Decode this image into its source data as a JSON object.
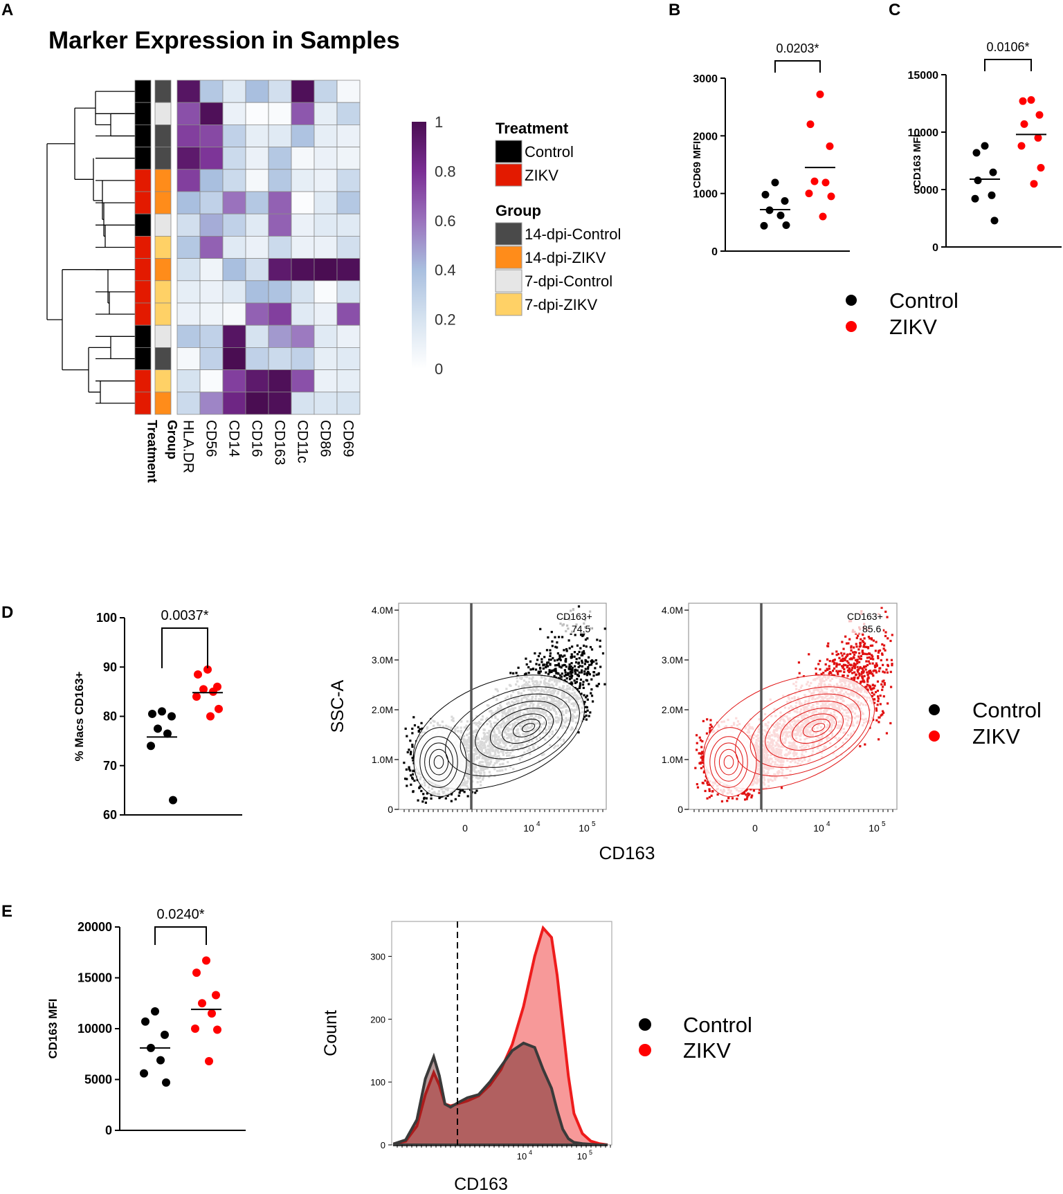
{
  "panels": {
    "A": {
      "letter": "A",
      "chart_data": {
        "type": "heatmap",
        "title": "Marker Expression in Samples",
        "markers": [
          "HLA.DR",
          "CD56",
          "CD14",
          "CD16",
          "CD163",
          "CD11c",
          "CD86",
          "CD69"
        ],
        "annotation_column_labels": [
          "Treatment",
          "Group"
        ],
        "rows": [
          {
            "treatment": "Control",
            "group": "14-dpi-Control",
            "values": [
              0.95,
              0.35,
              0.15,
              0.4,
              0.22,
              0.98,
              0.28,
              0.05
            ]
          },
          {
            "treatment": "Control",
            "group": "7-dpi-Control",
            "values": [
              0.7,
              0.98,
              0.1,
              0.02,
              0.03,
              0.68,
              0.12,
              0.28
            ]
          },
          {
            "treatment": "Control",
            "group": "14-dpi-Control",
            "values": [
              0.75,
              0.72,
              0.3,
              0.12,
              0.15,
              0.38,
              0.12,
              0.1
            ]
          },
          {
            "treatment": "Control",
            "group": "14-dpi-Control",
            "values": [
              0.92,
              0.78,
              0.25,
              0.1,
              0.35,
              0.05,
              0.1,
              0.08
            ]
          },
          {
            "treatment": "ZIKV",
            "group": "14-dpi-ZIKV",
            "values": [
              0.75,
              0.4,
              0.25,
              0.05,
              0.35,
              0.12,
              0.1,
              0.25
            ]
          },
          {
            "treatment": "ZIKV",
            "group": "14-dpi-ZIKV",
            "values": [
              0.4,
              0.3,
              0.6,
              0.35,
              0.65,
              0.02,
              0.15,
              0.35
            ]
          },
          {
            "treatment": "Control",
            "group": "7-dpi-Control",
            "values": [
              0.22,
              0.45,
              0.3,
              0.15,
              0.65,
              0.1,
              0.15,
              0.15
            ]
          },
          {
            "treatment": "ZIKV",
            "group": "7-dpi-ZIKV",
            "values": [
              0.35,
              0.65,
              0.15,
              0.1,
              0.25,
              0.1,
              0.1,
              0.22
            ]
          },
          {
            "treatment": "ZIKV",
            "group": "14-dpi-ZIKV",
            "values": [
              0.2,
              0.08,
              0.4,
              0.22,
              0.92,
              0.98,
              1.0,
              0.98
            ]
          },
          {
            "treatment": "ZIKV",
            "group": "7-dpi-ZIKV",
            "values": [
              0.12,
              0.1,
              0.15,
              0.4,
              0.38,
              0.2,
              0.03,
              0.2
            ]
          },
          {
            "treatment": "ZIKV",
            "group": "7-dpi-ZIKV",
            "values": [
              0.1,
              0.08,
              0.05,
              0.65,
              0.75,
              0.15,
              0.1,
              0.7
            ]
          },
          {
            "treatment": "Control",
            "group": "7-dpi-Control",
            "values": [
              0.35,
              0.3,
              0.95,
              0.2,
              0.5,
              0.58,
              0.15,
              0.1
            ]
          },
          {
            "treatment": "Control",
            "group": "14-dpi-Control",
            "values": [
              0.05,
              0.3,
              1.0,
              0.3,
              0.25,
              0.3,
              0.12,
              0.15
            ]
          },
          {
            "treatment": "ZIKV",
            "group": "7-dpi-ZIKV",
            "values": [
              0.2,
              0.03,
              0.75,
              0.92,
              0.98,
              0.7,
              0.1,
              0.12
            ]
          },
          {
            "treatment": "ZIKV",
            "group": "14-dpi-ZIKV",
            "values": [
              0.25,
              0.55,
              0.85,
              1.0,
              0.98,
              0.2,
              0.18,
              0.2
            ]
          }
        ],
        "colorbar_ticks": [
          "1",
          "0.8",
          "0.6",
          "0.4",
          "0.2",
          "0"
        ],
        "legend": {
          "treatment_title": "Treatment",
          "treatment_items": [
            {
              "label": "Control",
              "color": "#000000"
            },
            {
              "label": "ZIKV",
              "color": "#e31a00"
            }
          ],
          "group_title": "Group",
          "group_items": [
            {
              "label": "14-dpi-Control",
              "color": "#4a4a4a"
            },
            {
              "label": "14-dpi-ZIKV",
              "color": "#ff8c1a"
            },
            {
              "label": "7-dpi-Control",
              "color": "#e6e6e6"
            },
            {
              "label": "7-dpi-ZIKV",
              "color": "#ffd166"
            }
          ]
        }
      }
    },
    "B": {
      "letter": "B",
      "chart_data": {
        "type": "scatter",
        "ylabel": "CD69 MFI",
        "ylim": [
          0,
          3000
        ],
        "yticks": [
          "0",
          "1000",
          "2000",
          "3000"
        ],
        "pvalue": "0.0203*",
        "series": [
          {
            "name": "Control",
            "color": "#000000",
            "values": [
              1190,
              980,
              870,
              710,
              620,
              440,
              450
            ],
            "mean": 720
          },
          {
            "name": "ZIKV",
            "color": "#ff0000",
            "values": [
              2720,
              2200,
              1820,
              1210,
              1190,
              1000,
              950,
              600
            ],
            "mean": 1450
          }
        ]
      }
    },
    "C": {
      "letter": "C",
      "chart_data": {
        "type": "scatter",
        "ylabel": "CD163 MFI",
        "ylim": [
          0,
          15000
        ],
        "yticks": [
          "0",
          "5000",
          "10000",
          "15000"
        ],
        "pvalue": "0.0106*",
        "series": [
          {
            "name": "Control",
            "color": "#000000",
            "values": [
              8800,
              8200,
              6500,
              5800,
              4500,
              4200,
              2300
            ],
            "mean": 5900
          },
          {
            "name": "ZIKV",
            "color": "#ff0000",
            "values": [
              12800,
              12700,
              11500,
              10700,
              9500,
              8800,
              6900,
              5500
            ],
            "mean": 9800
          }
        ]
      }
    },
    "BC_legend": [
      {
        "label": "Control",
        "color": "#000000"
      },
      {
        "label": "ZIKV",
        "color": "#ff0000"
      }
    ],
    "D": {
      "letter": "D",
      "chart_data": [
        {
          "type": "scatter",
          "ylabel": "% Macs CD163+",
          "ylim": [
            60,
            100
          ],
          "yticks": [
            "60",
            "70",
            "80",
            "90",
            "100"
          ],
          "pvalue": "0.0037*",
          "series": [
            {
              "name": "Control",
              "color": "#000000",
              "values": [
                81,
                80.5,
                80,
                77.5,
                76.5,
                74,
                63
              ],
              "mean": 75.8
            },
            {
              "name": "ZIKV",
              "color": "#ff0000",
              "values": [
                89.5,
                88.5,
                86,
                85.5,
                85,
                84,
                81.5,
                80
              ],
              "mean": 84.8
            }
          ]
        },
        {
          "type": "scatter",
          "subtype": "flow-cytometry-contour",
          "series_name": "Control",
          "color": "#000000",
          "ylabel": "SSC-A",
          "yticks": [
            "0",
            "1.0M",
            "2.0M",
            "3.0M",
            "4.0M"
          ],
          "xticks": [
            "0",
            "10",
            "10"
          ],
          "xtick_exponents": [
            "",
            "4",
            "5"
          ],
          "gate_label": "CD163+",
          "gate_value": "74.5"
        },
        {
          "type": "scatter",
          "subtype": "flow-cytometry-contour",
          "series_name": "ZIKV",
          "color": "#e01010",
          "ylabel": "",
          "yticks": [
            "0",
            "1.0M",
            "2.0M",
            "3.0M",
            "4.0M"
          ],
          "xticks": [
            "0",
            "10",
            "10"
          ],
          "xtick_exponents": [
            "",
            "4",
            "5"
          ],
          "gate_label": "CD163+",
          "gate_value": "85.6"
        }
      ],
      "shared_xlabel": "CD163",
      "legend": [
        {
          "label": "Control",
          "color": "#000000"
        },
        {
          "label": "ZIKV",
          "color": "#ff0000"
        }
      ]
    },
    "E": {
      "letter": "E",
      "chart_data": [
        {
          "type": "scatter",
          "ylabel": "CD163 MFI",
          "ylim": [
            0,
            20000
          ],
          "yticks": [
            "0",
            "5000",
            "10000",
            "15000",
            "20000"
          ],
          "pvalue": "0.0240*",
          "series": [
            {
              "name": "Control",
              "color": "#000000",
              "values": [
                11700,
                10700,
                9400,
                8100,
                6900,
                5600,
                4700
              ],
              "mean": 8100
            },
            {
              "name": "ZIKV",
              "color": "#ff0000",
              "values": [
                16700,
                15500,
                13300,
                12500,
                11500,
                10000,
                9900,
                6800
              ],
              "mean": 11900
            }
          ]
        },
        {
          "type": "area",
          "subtype": "histogram",
          "xlabel": "CD163",
          "ylabel": "Count",
          "ylim": [
            0,
            350
          ],
          "yticks": [
            "0",
            "100",
            "200",
            "300"
          ],
          "xticks": [
            "10",
            "10"
          ],
          "xtick_exponents": [
            "4",
            "5"
          ],
          "x": [
            0,
            20,
            40,
            55,
            70,
            80,
            90,
            100,
            115,
            130,
            150,
            170,
            190,
            210,
            230,
            250,
            265,
            280,
            290,
            300,
            310,
            320,
            335,
            350,
            365,
            380
          ],
          "series": [
            {
              "name": "Control",
              "color": "#3a3a3a",
              "values": [
                2,
                8,
                40,
                105,
                140,
                110,
                65,
                60,
                68,
                75,
                80,
                100,
                125,
                150,
                162,
                155,
                120,
                90,
                55,
                25,
                10,
                4,
                2,
                1,
                0,
                0
              ]
            },
            {
              "name": "ZIKV",
              "color": "#ee1c1c",
              "values": [
                2,
                6,
                30,
                80,
                115,
                95,
                65,
                62,
                66,
                70,
                78,
                95,
                120,
                160,
                220,
                300,
                345,
                330,
                270,
                190,
                110,
                50,
                18,
                6,
                2,
                0
              ]
            }
          ]
        }
      ],
      "legend": [
        {
          "label": "Control",
          "color": "#000000"
        },
        {
          "label": "ZIKV",
          "color": "#ff0000"
        }
      ]
    }
  }
}
